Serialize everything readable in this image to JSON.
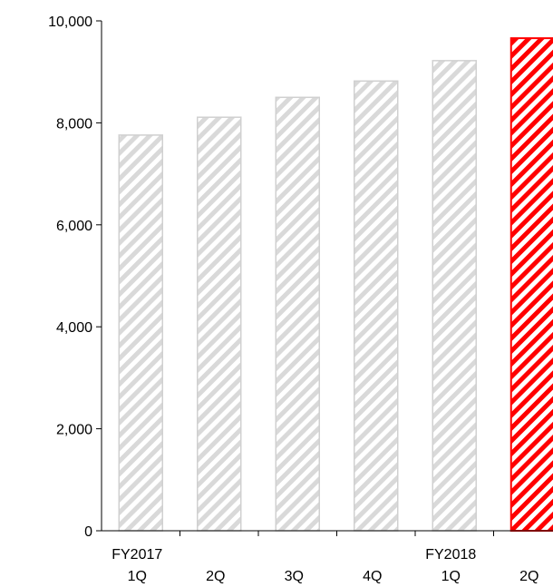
{
  "chart_data": {
    "type": "bar",
    "categories": [
      {
        "line1": "FY2017",
        "line2": "1Q"
      },
      {
        "line1": "",
        "line2": "2Q"
      },
      {
        "line1": "",
        "line2": "3Q"
      },
      {
        "line1": "",
        "line2": "4Q"
      },
      {
        "line1": "FY2018",
        "line2": "1Q"
      },
      {
        "line1": "",
        "line2": "2Q"
      }
    ],
    "values": [
      7760,
      8110,
      8500,
      8820,
      9220,
      9660
    ],
    "ylim": [
      0,
      10000
    ],
    "yticks": [
      "0",
      "2,000",
      "4,000",
      "6,000",
      "8,000",
      "10,000"
    ],
    "ytick_values": [
      0,
      2000,
      4000,
      6000,
      8000,
      10000
    ],
    "grid": false,
    "legend": "none",
    "colors": {
      "bar_fill": "#d9d9d9",
      "bar_stroke": "#d0d0d0",
      "highlight_fill": "#ff0000",
      "highlight_stroke": "#ff0000",
      "axis": "#000000"
    },
    "highlight_index": 5,
    "pattern": "diagonal-stripes"
  }
}
